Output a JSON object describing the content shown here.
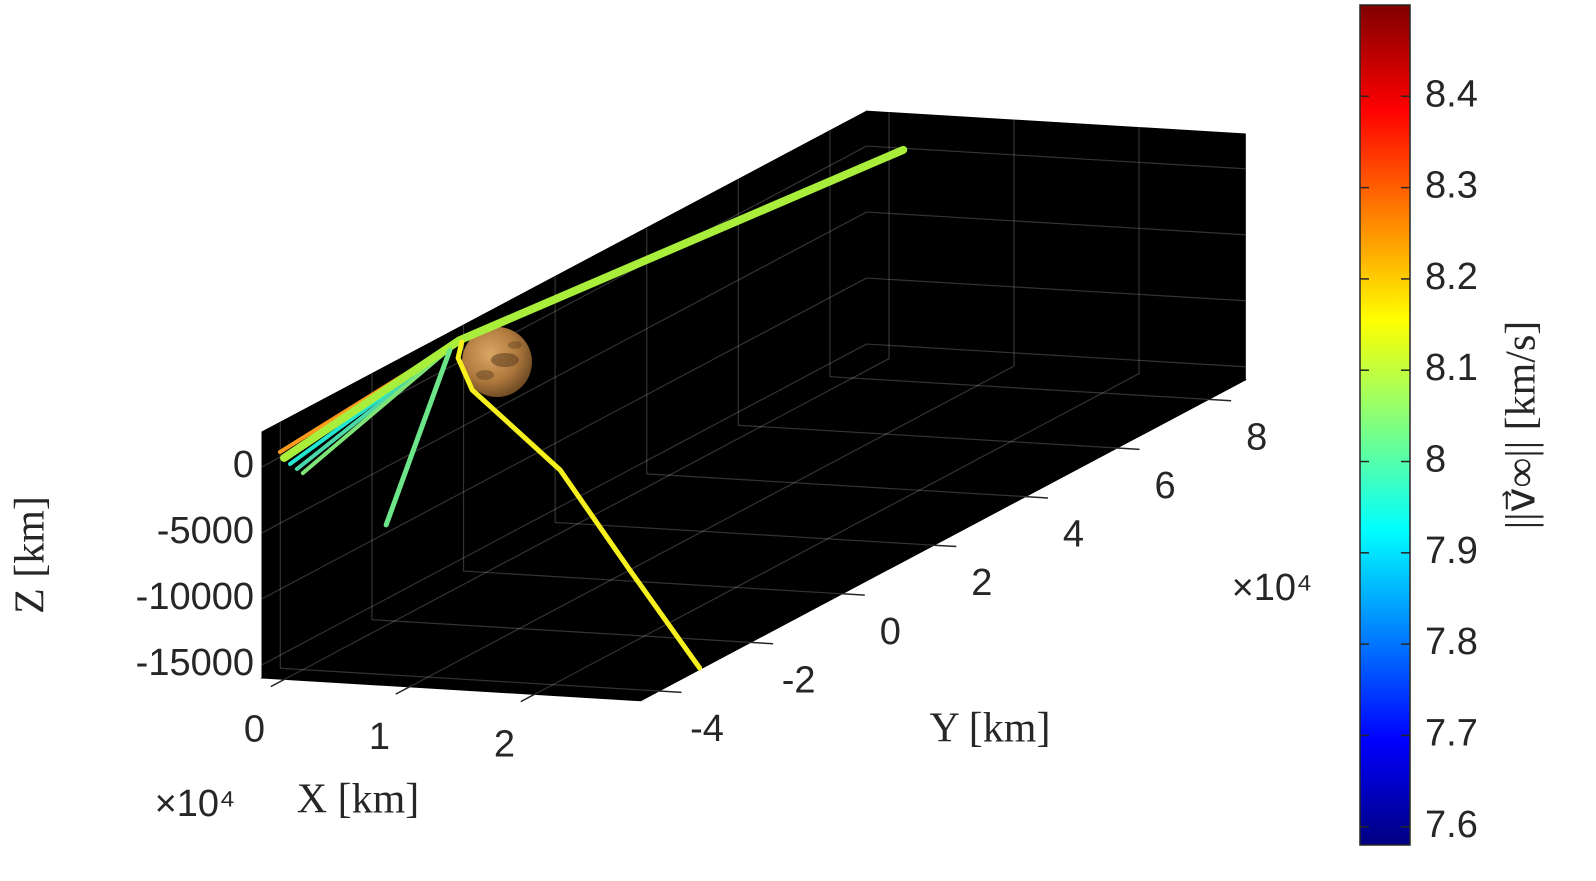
{
  "chart_data": {
    "type": "line3d",
    "xlabel": "X [km]",
    "ylabel": "Y [km]",
    "zlabel": "Z [km]",
    "x_exponent_label": "×10⁴",
    "y_exponent_label": "×10⁴",
    "xlim": [
      -0.18,
      2.85
    ],
    "ylim": [
      -4.4,
      8.8
    ],
    "zlim": [
      -16000,
      2640
    ],
    "xticks": [
      0,
      1,
      2
    ],
    "yticks": [
      -4,
      -2,
      0,
      2,
      4,
      6,
      8
    ],
    "zticks": [
      -15000,
      -10000,
      -5000,
      0
    ],
    "grid": true,
    "background": "#000000",
    "series": [
      {
        "color": "#ff9a1a",
        "width": 4,
        "x": [
          -0.1,
          -0.15
        ],
        "y": [
          -0.3,
          -4.09
        ],
        "z": [
          2095,
          566
        ]
      },
      {
        "color": "#22e6d0",
        "width": 4,
        "x": [
          -0.1,
          -0.15
        ],
        "y": [
          -0.3,
          -3.87
        ],
        "z": [
          2095,
          -745
        ]
      },
      {
        "color": "#4ad8a8",
        "width": 4,
        "x": [
          -0.1,
          -0.15
        ],
        "y": [
          -0.3,
          -3.72
        ],
        "z": [
          2095,
          -1405
        ]
      },
      {
        "color": "#7fe478",
        "width": 4,
        "x": [
          -0.1,
          -0.15
        ],
        "y": [
          -0.3,
          -3.59
        ],
        "z": [
          2095,
          -1949
        ]
      },
      {
        "color": "#a8ee3a",
        "width": 8,
        "x": [
          0.15,
          -0.1,
          -0.15
        ],
        "y": [
          8.7,
          -0.3,
          -4.0
        ],
        "z": [
          80,
          2095,
          -49
        ]
      },
      {
        "color": "#6de68a",
        "width": 5,
        "x": [
          0,
          0
        ],
        "y": [
          -0.79,
          -2.18
        ],
        "z": [
          2298,
          -8386
        ]
      },
      {
        "color": "#f6f01e",
        "width": 5,
        "x": [
          -0.15,
          -0.15,
          -0.1,
          0.1,
          0.6,
          1.7,
          2.83
        ],
        "y": [
          -0.12,
          -0.2,
          -0.03,
          0.03,
          -0.02,
          -1.5,
          -3.06
        ],
        "z": [
          1583,
          530,
          -2174,
          -4076,
          -7860,
          -12096,
          -16000
        ]
      }
    ],
    "colorbar": {
      "label": "||v⃗∞|| [km/s]",
      "colormap": "jet",
      "clim": [
        7.58,
        8.5
      ],
      "ticks": [
        7.6,
        7.7,
        7.8,
        7.9,
        {
          "value": 8.0,
          "label": "8"
        },
        8.1,
        8.2,
        8.3,
        8.4
      ]
    }
  }
}
